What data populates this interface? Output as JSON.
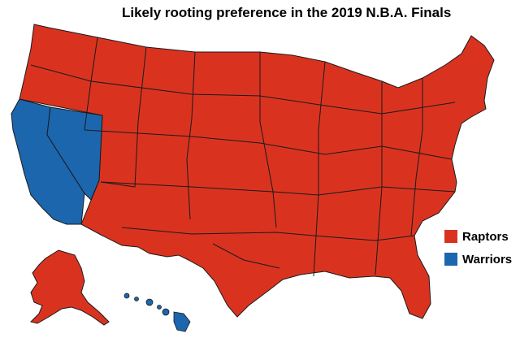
{
  "title": "Likely rooting preference in the 2019 N.B.A. Finals",
  "colors": {
    "raptors": "#d93320",
    "warriors": "#1c66ad",
    "border": "#1a1a1a"
  },
  "legend": [
    {
      "label": "Raptors",
      "color": "#d93320"
    },
    {
      "label": "Warriors",
      "color": "#1c66ad"
    }
  ],
  "regions": {
    "warriors": [
      "California",
      "Nevada",
      "Hawaii"
    ],
    "raptors": "all other states"
  }
}
